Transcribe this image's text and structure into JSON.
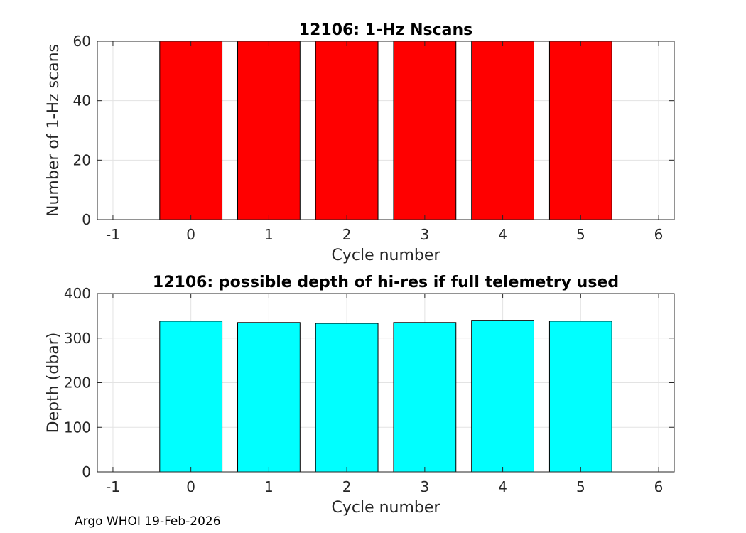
{
  "chart_data": [
    {
      "type": "bar",
      "title": "12106: 1-Hz Nscans",
      "xlabel": "Cycle number",
      "ylabel": "Number of 1-Hz scans",
      "categories": [
        0,
        1,
        2,
        3,
        4,
        5
      ],
      "values": [
        60,
        60,
        60,
        60,
        60,
        60
      ],
      "bar_color": "#ff0000",
      "xlim": [
        -1.2,
        6.2
      ],
      "ylim": [
        0,
        60
      ],
      "xticks": [
        -1,
        0,
        1,
        2,
        3,
        4,
        5,
        6
      ],
      "yticks": [
        0,
        20,
        40,
        60
      ],
      "grid": true
    },
    {
      "type": "bar",
      "title": "12106: possible depth of hi-res if full telemetry used",
      "xlabel": "Cycle number",
      "ylabel": "Depth (dbar)",
      "categories": [
        0,
        1,
        2,
        3,
        4,
        5
      ],
      "values": [
        338,
        335,
        333,
        335,
        340,
        338
      ],
      "bar_color": "#00ffff",
      "xlim": [
        -1.2,
        6.2
      ],
      "ylim": [
        0,
        400
      ],
      "xticks": [
        -1,
        0,
        1,
        2,
        3,
        4,
        5,
        6
      ],
      "yticks": [
        0,
        100,
        200,
        300,
        400
      ],
      "grid": true
    }
  ],
  "footer": "Argo WHOI 19-Feb-2026"
}
